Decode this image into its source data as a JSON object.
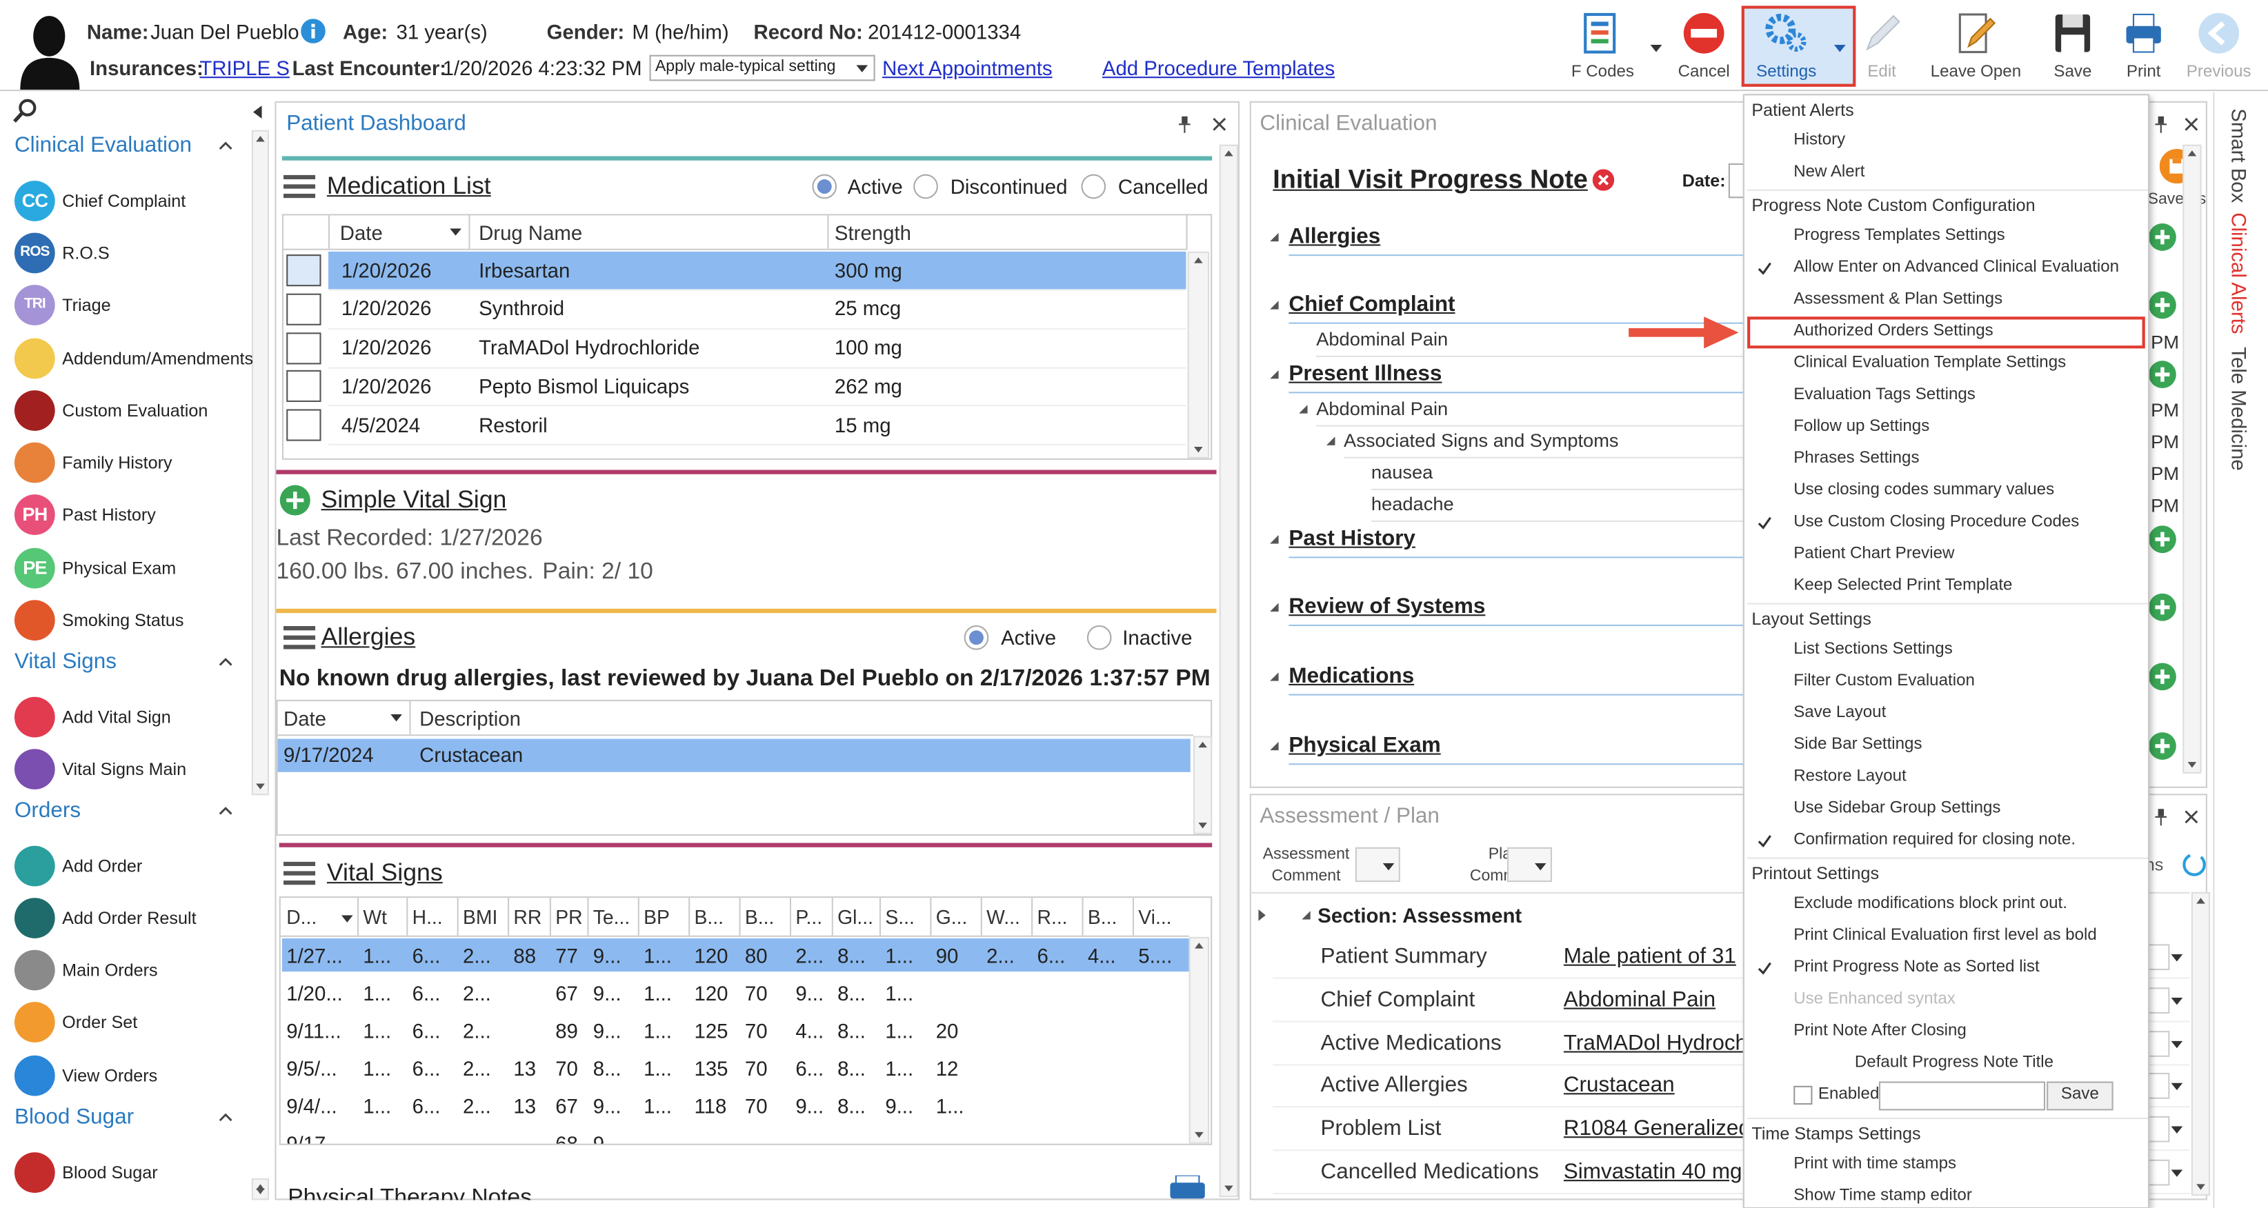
{
  "header": {
    "name_label": "Name:",
    "name": "Juan Del Pueblo",
    "age_label": "Age:",
    "age": "31 year(s)",
    "gender_label": "Gender:",
    "gender": "M (he/him)",
    "record_label": "Record No:",
    "record_no": "201412-0001334",
    "insurances_label": "Insurances:",
    "insurance": "TRIPLE S",
    "last_encounter_label": "Last Encounter:",
    "last_encounter": "1/20/2026 4:23:32 PM",
    "setting_select": "Apply male-typical setting",
    "links": [
      "Next Appointments",
      "Add Procedure Templates"
    ]
  },
  "toolbar": [
    "F Codes",
    "Cancel",
    "Settings",
    "Edit",
    "Leave Open",
    "Save",
    "Print",
    "Previous"
  ],
  "sidebar": [
    {
      "title": "Clinical Evaluation",
      "items": [
        {
          "icon": "CC",
          "label": "Chief Complaint"
        },
        {
          "icon": "ROS",
          "label": "R.O.S"
        },
        {
          "icon": "TRI",
          "label": "Triage"
        },
        {
          "label": "Addendum/Amendments"
        },
        {
          "label": "Custom Evaluation"
        },
        {
          "label": "Family History"
        },
        {
          "icon": "PH",
          "label": "Past History"
        },
        {
          "icon": "PE",
          "label": "Physical Exam"
        },
        {
          "label": "Smoking Status"
        }
      ]
    },
    {
      "title": "Vital Signs",
      "items": [
        {
          "label": "Add Vital Sign"
        },
        {
          "label": "Vital Signs Main"
        }
      ]
    },
    {
      "title": "Orders",
      "items": [
        {
          "label": "Add Order"
        },
        {
          "label": "Add Order Result"
        },
        {
          "label": "Main Orders"
        },
        {
          "label": "Order Set"
        },
        {
          "label": "View Orders"
        }
      ]
    },
    {
      "title": "Blood Sugar",
      "items": [
        {
          "label": "Blood Sugar"
        }
      ]
    }
  ],
  "dashboard": {
    "title": "Patient Dashboard",
    "medication_list": {
      "title": "Medication List",
      "filters": [
        "Active",
        "Discontinued",
        "Cancelled"
      ],
      "columns": [
        "Date",
        "Drug Name",
        "Strength"
      ],
      "rows": [
        [
          "1/20/2026",
          "Irbesartan",
          "300 mg"
        ],
        [
          "1/20/2026",
          "Synthroid",
          "25 mcg"
        ],
        [
          "1/20/2026",
          "TraMADol Hydrochloride",
          "100 mg"
        ],
        [
          "1/20/2026",
          "Pepto Bismol Liquicaps",
          "262 mg"
        ],
        [
          "4/5/2024",
          "Restoril",
          "15 mg"
        ]
      ]
    },
    "simple_vital_sign": {
      "title": "Simple Vital Sign",
      "last_recorded": "Last Recorded: 1/27/2026",
      "measurements": "160.00 lbs. 67.00 inches.",
      "pain": "Pain: 2/ 10"
    },
    "allergies": {
      "title": "Allergies",
      "filters": [
        "Active",
        "Inactive"
      ],
      "note": "No known drug allergies, last reviewed by Juana Del Pueblo on 2/17/2026 1:37:57 PM",
      "columns": [
        "Date",
        "Description"
      ],
      "rows": [
        [
          "9/17/2024",
          "Crustacean"
        ]
      ]
    },
    "vital_signs": {
      "title": "Vital Signs",
      "columns": [
        "D...",
        "Wt",
        "H...",
        "BMI",
        "RR",
        "PR",
        "Te...",
        "BP",
        "B...",
        "B...",
        "P...",
        "Gl...",
        "S...",
        "G...",
        "W...",
        "R...",
        "B...",
        "Vi..."
      ],
      "rows": [
        [
          "1/27...",
          "1...",
          "6...",
          "2...",
          "88",
          "77",
          "9...",
          "1...",
          "120",
          "80",
          "2...",
          "8...",
          "1...",
          "90",
          "2...",
          "6...",
          "4...",
          "5...."
        ],
        [
          "1/20...",
          "1...",
          "6...",
          "2...",
          null,
          "67",
          "9...",
          "1...",
          "120",
          "70",
          "9...",
          "8...",
          "1..."
        ],
        [
          "9/11...",
          "1...",
          "6...",
          "2...",
          null,
          "89",
          "9...",
          "1...",
          "125",
          "70",
          "4...",
          "8...",
          "1...",
          "20"
        ],
        [
          "9/5/...",
          "1...",
          "6...",
          "2...",
          "13",
          "70",
          "8...",
          "1...",
          "135",
          "70",
          "6...",
          "8...",
          "1...",
          "12"
        ],
        [
          "9/4/...",
          "1...",
          "6...",
          "2...",
          "13",
          "67",
          "9...",
          "1...",
          "118",
          "70",
          "9...",
          "8...",
          "9...",
          "1..."
        ],
        [
          "9/17",
          null,
          null,
          null,
          null,
          "68",
          "9"
        ]
      ]
    },
    "physical_therapy_notes": {
      "title": "Physical Therapy Notes"
    }
  },
  "clinical_evaluation": {
    "title": "Clinical Evaluation",
    "note_title": "Initial Visit Progress Note",
    "date_label": "Date:",
    "save_as": "Save As",
    "tree": [
      {
        "label": "Allergies"
      },
      {
        "label": "Chief Complaint",
        "children": [
          {
            "label": "Abdominal Pain"
          }
        ]
      },
      {
        "label": "Present Illness",
        "children": [
          {
            "label": "Abdominal Pain",
            "children": [
              {
                "label": "Associated Signs and Symptoms",
                "children": [
                  {
                    "label": "nausea"
                  },
                  {
                    "label": "headache"
                  }
                ]
              }
            ]
          }
        ]
      },
      {
        "label": "Past History"
      },
      {
        "label": "Review of Systems"
      },
      {
        "label": "Medications"
      },
      {
        "label": "Physical Exam"
      }
    ],
    "times": [
      "PM",
      "PM",
      "PM",
      "PM",
      "PM"
    ]
  },
  "assessment_plan": {
    "title": "Assessment / Plan",
    "assessment_comment": [
      "Assessment",
      "Comment"
    ],
    "plan_comment": [
      "Plan",
      "Comment"
    ],
    "actions_fragment": "ns",
    "section": "Section: Assessment",
    "rows": [
      {
        "label": "Patient Summary",
        "value": "Male patient of 31"
      },
      {
        "label": "Chief Complaint",
        "value": "Abdominal Pain"
      },
      {
        "label": "Active Medications",
        "value": "TraMADol Hydroch"
      },
      {
        "label": "Active Allergies",
        "value": "Crustacean"
      },
      {
        "label": "Problem List",
        "value": "R1084 Generalized"
      },
      {
        "label": "Cancelled Medications",
        "value": "Simvastatin 40 mg"
      }
    ]
  },
  "settings_menu": [
    {
      "title": "Patient Alerts",
      "items": [
        {
          "label": "History"
        },
        {
          "label": "New Alert"
        }
      ]
    },
    {
      "title": "Progress Note Custom Configuration",
      "items": [
        {
          "label": "Progress Templates Settings"
        },
        {
          "label": "Allow Enter on Advanced Clinical Evaluation",
          "checked": true
        },
        {
          "label": "Assessment & Plan Settings"
        },
        {
          "label": "Authorized Orders Settings",
          "highlighted": true
        },
        {
          "label": "Clinical Evaluation Template Settings"
        },
        {
          "label": "Evaluation Tags Settings"
        },
        {
          "label": "Follow up Settings"
        },
        {
          "label": "Phrases Settings"
        },
        {
          "label": "Use closing codes summary values"
        },
        {
          "label": "Use Custom Closing Procedure Codes",
          "checked": true
        },
        {
          "label": "Patient Chart Preview"
        },
        {
          "label": "Keep Selected Print Template"
        }
      ]
    },
    {
      "title": "Layout Settings",
      "items": [
        {
          "label": "List Sections Settings"
        },
        {
          "label": "Filter Custom Evaluation"
        },
        {
          "label": "Save Layout"
        },
        {
          "label": "Side Bar Settings"
        },
        {
          "label": "Restore Layout"
        },
        {
          "label": "Use Sidebar Group Settings"
        },
        {
          "label": "Confirmation required for closing note.",
          "checked": true
        }
      ]
    },
    {
      "title": "Printout Settings",
      "items": [
        {
          "label": "Exclude modifications block print out."
        },
        {
          "label": "Print Clinical Evaluation first level as bold"
        },
        {
          "label": "Print Progress Note as Sorted list",
          "checked": true
        },
        {
          "label": "Use Enhanced syntax",
          "disabled": true
        },
        {
          "label": "Print Note After Closing"
        }
      ],
      "note_title": {
        "title": "Default Progress Note Title",
        "checkbox": "Enabled",
        "button": "Save"
      }
    },
    {
      "title": "Time Stamps Settings",
      "items": [
        {
          "label": "Print with time stamps"
        },
        {
          "label": "Show Time stamp editor"
        }
      ]
    }
  ],
  "side_tabs": [
    "Smart Box",
    "Clinical Alerts",
    "Tele Medicine"
  ]
}
